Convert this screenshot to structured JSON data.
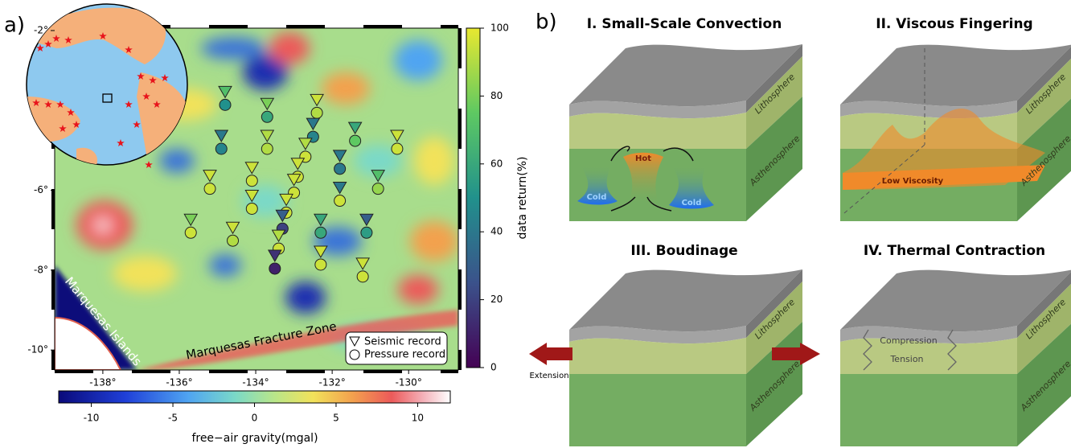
{
  "chart_data": {
    "type": "map",
    "panel_label": "a)",
    "xlim": [
      -139.26,
      -128.7
    ],
    "ylim": [
      -10.5,
      -1.94
    ],
    "xticks": [
      {
        "value": -138,
        "label": "-138°"
      },
      {
        "value": -136,
        "label": "-136°"
      },
      {
        "value": -134,
        "label": "-134°"
      },
      {
        "value": -132,
        "label": "-132°"
      },
      {
        "value": -130,
        "label": "-130°"
      }
    ],
    "yticks": [
      {
        "value": -2,
        "label": "-2°"
      },
      {
        "value": -6,
        "label": "-6°"
      },
      {
        "value": -8,
        "label": "-8°"
      },
      {
        "value": -10,
        "label": "-10°"
      }
    ],
    "annotations": [
      "Marquesas Islands",
      "Marquesas Fracture Zone"
    ],
    "x": [
      -134.8,
      -133.7,
      -132.4,
      -132.5,
      -131.4,
      -130.3,
      -134.9,
      -133.7,
      -132.7,
      -131.8,
      -134.1,
      -135.2,
      -130.8,
      -132.9,
      -133.0,
      -134.1,
      -131.8,
      -133.2,
      -135.7,
      -133.3,
      -132.3,
      -131.1,
      -134.6,
      -133.4,
      -132.3,
      -133.5,
      -131.2
    ],
    "y": [
      -3.7,
      -4.0,
      -3.9,
      -4.5,
      -4.6,
      -4.8,
      -4.8,
      -4.8,
      -5.0,
      -5.3,
      -5.6,
      -5.8,
      -5.8,
      -5.5,
      -5.9,
      -6.3,
      -6.1,
      -6.4,
      -6.9,
      -6.8,
      -6.9,
      -6.9,
      -7.1,
      -7.3,
      -7.7,
      -7.8,
      -8.0
    ],
    "series": [
      {
        "name": "Seismic record",
        "marker": "triangle",
        "values": [
          70,
          80,
          95,
          40,
          60,
          95,
          40,
          90,
          90,
          40,
          95,
          95,
          70,
          95,
          95,
          95,
          40,
          95,
          80,
          30,
          60,
          30,
          95,
          90,
          95,
          15,
          95
        ]
      },
      {
        "name": "Pressure record",
        "marker": "circle",
        "values": [
          50,
          60,
          90,
          45,
          75,
          95,
          45,
          90,
          95,
          40,
          95,
          95,
          85,
          95,
          95,
          95,
          95,
          95,
          95,
          20,
          60,
          55,
          90,
          95,
          95,
          10,
          95
        ]
      }
    ],
    "colorbar": {
      "label": "data return(%)",
      "lim": [
        0,
        100
      ],
      "ticks": [
        0,
        20,
        40,
        60,
        80,
        100
      ]
    },
    "gravity_colorbar": {
      "label": "free−air gravity(mgal)",
      "lim": [
        -12,
        12
      ],
      "ticks": [
        -10,
        -5,
        0,
        5,
        10
      ]
    }
  },
  "panel_b": {
    "label": "b)",
    "panels": [
      {
        "title": "I. Small-Scale Convection",
        "lithosphere": "Lithosphere",
        "asthenosphere": "Asthenosphere",
        "labels": [
          "Hot",
          "Cold",
          "Cold"
        ]
      },
      {
        "title": "II. Viscous Fingering",
        "lithosphere": "Lithosphere",
        "asthenosphere": "Asthenosphere",
        "labels": [
          "Low Viscosity"
        ]
      },
      {
        "title": "III. Boudinage",
        "lithosphere": "Lithosphere",
        "asthenosphere": "Asthenosphere",
        "labels": [
          "Extension"
        ]
      },
      {
        "title": "IV. Thermal Contraction",
        "lithosphere": "Lithosphere",
        "asthenosphere": "Asthenosphere",
        "labels": [
          "Compression",
          "Tension"
        ]
      }
    ]
  }
}
